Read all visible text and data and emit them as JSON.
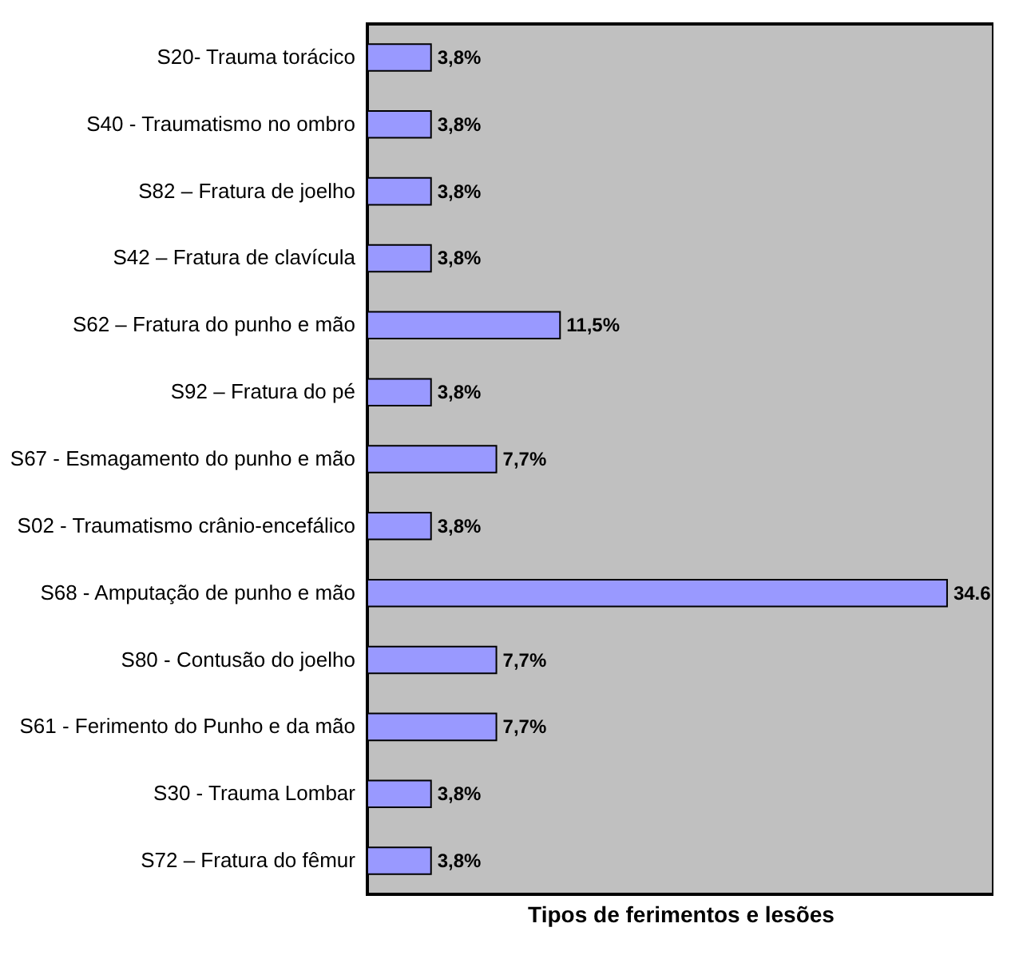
{
  "chart_data": {
    "type": "bar",
    "orientation": "horizontal",
    "xlabel": "Tipos de ferimentos e lesões",
    "categories": [
      "S20- Trauma torácico",
      "S40 - Traumatismo no ombro",
      "S82 – Fratura de joelho",
      "S42 – Fratura de clavícula",
      "S62 – Fratura do punho e mão",
      "S92 – Fratura do pé",
      "S67 - Esmagamento do punho e mão",
      "S02 - Traumatismo crânio-encefálico",
      "S68 - Amputação de punho e mão",
      "S80 - Contusão do joelho",
      "S61 - Ferimento do Punho e da mão",
      "S30 - Trauma Lombar",
      "S72 – Fratura do fêmur"
    ],
    "values": [
      3.8,
      3.8,
      3.8,
      3.8,
      11.5,
      3.8,
      7.7,
      3.8,
      34.6,
      7.7,
      7.7,
      3.8,
      3.8
    ],
    "value_labels": [
      "3,8%",
      "3,8%",
      "3,8%",
      "3,8%",
      "11,5%",
      "3,8%",
      "7,7%",
      "3,8%",
      "34.6",
      "7,7%",
      "7,7%",
      "3,8%",
      "3,8%"
    ],
    "color": "#9999ff",
    "tick_labels": "y",
    "grid": false
  }
}
